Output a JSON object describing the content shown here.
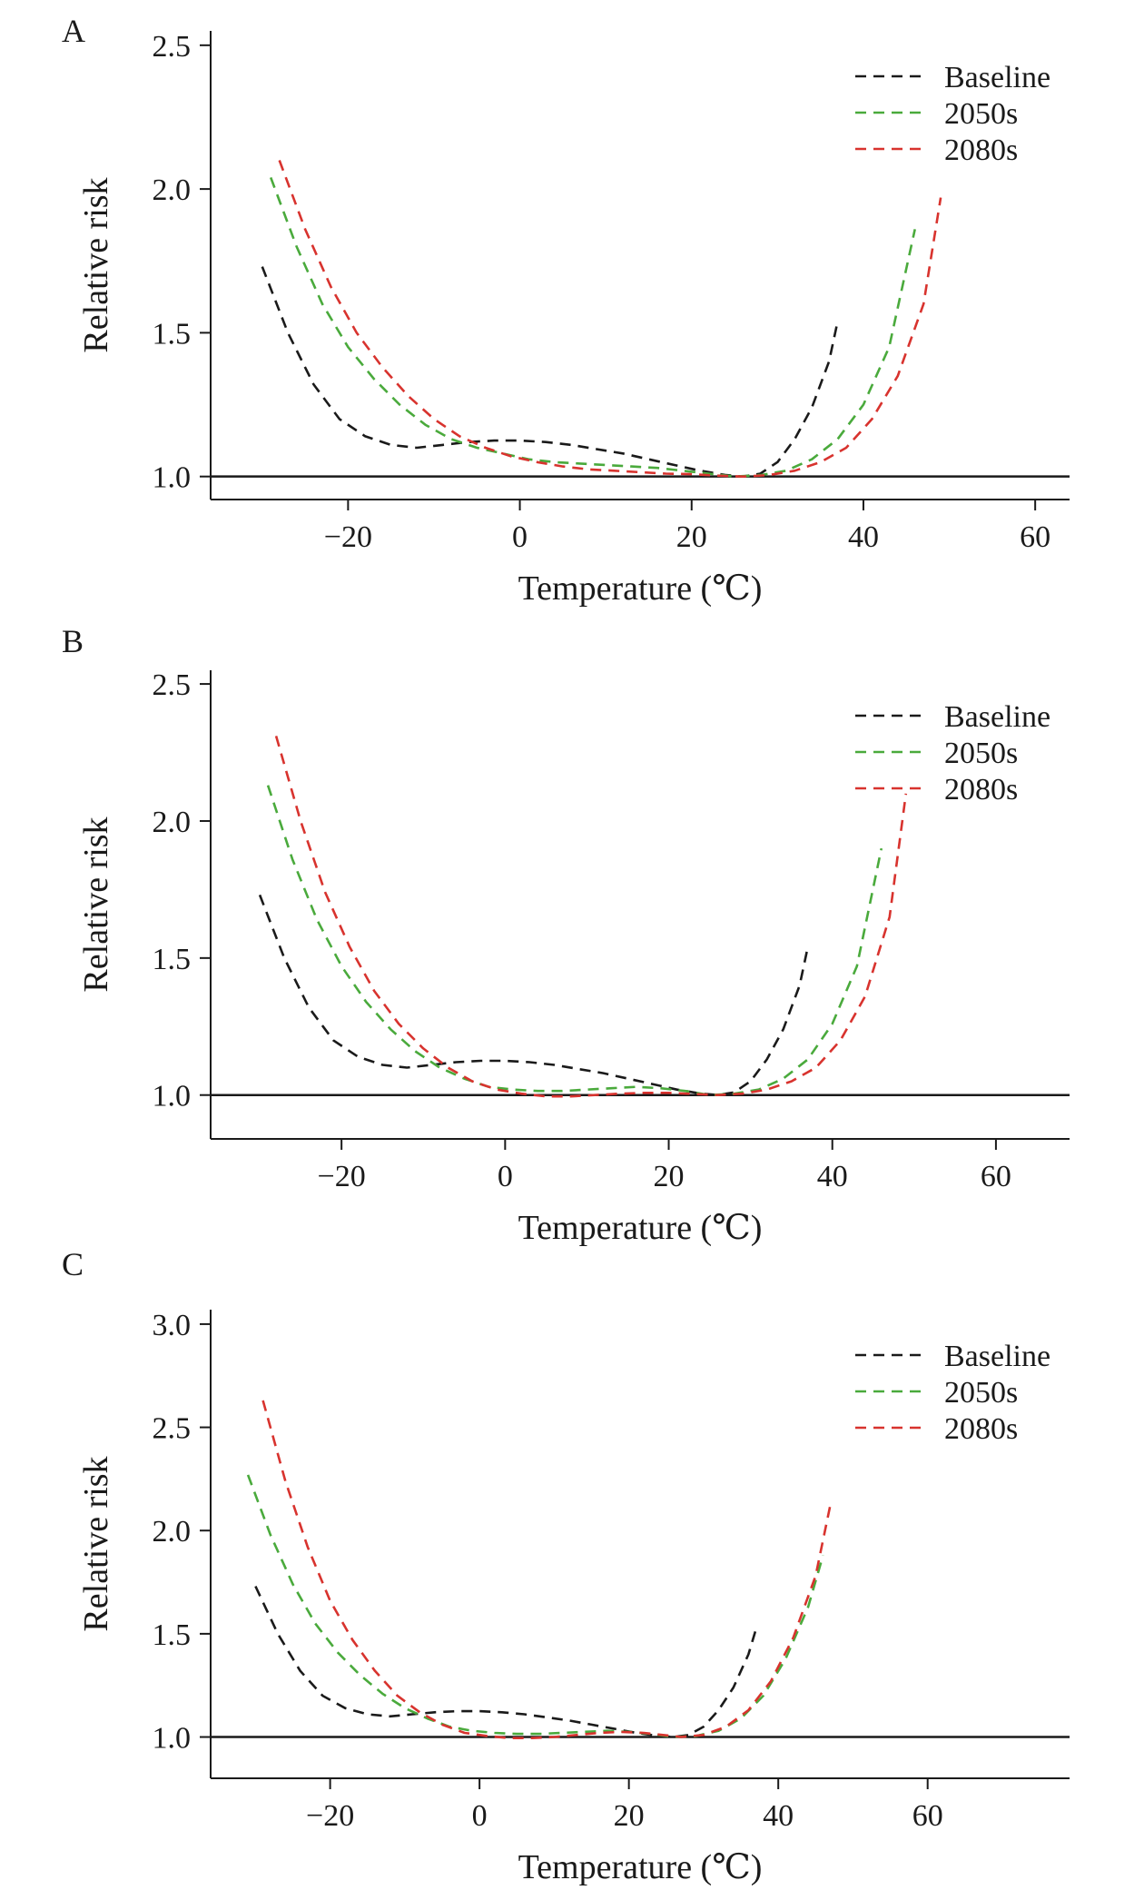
{
  "chart_data": [
    {
      "type": "line",
      "panel": "A",
      "xlabel": "Temperature (℃)",
      "ylabel": "Relative risk",
      "xlim": [
        -36,
        64
      ],
      "ylim": [
        0.92,
        2.55
      ],
      "xticks": [
        -20,
        0,
        20,
        40,
        60
      ],
      "xtick_labels": [
        "−20",
        "0",
        "20",
        "40",
        "60"
      ],
      "yticks": [
        1.0,
        1.5,
        2.0,
        2.5
      ],
      "ytick_labels": [
        "1.0",
        "1.5",
        "2.0",
        "2.5"
      ],
      "reference_line": 1.0,
      "grid": false,
      "legend_position": "top-right",
      "series": [
        {
          "name": "Baseline",
          "color": "#1a1a1a",
          "points": [
            [
              -30,
              1.73
            ],
            [
              -27,
              1.5
            ],
            [
              -24,
              1.32
            ],
            [
              -21,
              1.2
            ],
            [
              -18,
              1.14
            ],
            [
              -15,
              1.11
            ],
            [
              -12,
              1.1
            ],
            [
              -9,
              1.11
            ],
            [
              -6,
              1.12
            ],
            [
              -3,
              1.125
            ],
            [
              0,
              1.125
            ],
            [
              3,
              1.12
            ],
            [
              6,
              1.11
            ],
            [
              9,
              1.095
            ],
            [
              12,
              1.08
            ],
            [
              15,
              1.06
            ],
            [
              18,
              1.04
            ],
            [
              21,
              1.02
            ],
            [
              24,
              1.005
            ],
            [
              26,
              1.0
            ],
            [
              28,
              1.01
            ],
            [
              30,
              1.05
            ],
            [
              32,
              1.13
            ],
            [
              34,
              1.24
            ],
            [
              36,
              1.4
            ],
            [
              37,
              1.54
            ]
          ]
        },
        {
          "name": "2050s",
          "color": "#4aaa3c",
          "points": [
            [
              -29,
              2.04
            ],
            [
              -26,
              1.8
            ],
            [
              -23,
              1.6
            ],
            [
              -20,
              1.45
            ],
            [
              -17,
              1.34
            ],
            [
              -14,
              1.25
            ],
            [
              -11,
              1.18
            ],
            [
              -8,
              1.13
            ],
            [
              -5,
              1.1
            ],
            [
              -2,
              1.08
            ],
            [
              1,
              1.06
            ],
            [
              4,
              1.05
            ],
            [
              7,
              1.045
            ],
            [
              10,
              1.04
            ],
            [
              13,
              1.035
            ],
            [
              16,
              1.03
            ],
            [
              19,
              1.02
            ],
            [
              22,
              1.01
            ],
            [
              25,
              1.0
            ],
            [
              28,
              1.005
            ],
            [
              31,
              1.02
            ],
            [
              34,
              1.06
            ],
            [
              37,
              1.13
            ],
            [
              40,
              1.25
            ],
            [
              43,
              1.45
            ],
            [
              46,
              1.86
            ]
          ]
        },
        {
          "name": "2080s",
          "color": "#d8332e",
          "points": [
            [
              -28,
              2.1
            ],
            [
              -25,
              1.86
            ],
            [
              -22,
              1.66
            ],
            [
              -19,
              1.5
            ],
            [
              -16,
              1.38
            ],
            [
              -13,
              1.28
            ],
            [
              -10,
              1.2
            ],
            [
              -7,
              1.14
            ],
            [
              -4,
              1.1
            ],
            [
              -1,
              1.07
            ],
            [
              2,
              1.05
            ],
            [
              5,
              1.035
            ],
            [
              8,
              1.025
            ],
            [
              11,
              1.02
            ],
            [
              14,
              1.015
            ],
            [
              17,
              1.01
            ],
            [
              20,
              1.008
            ],
            [
              23,
              1.003
            ],
            [
              26,
              1.0
            ],
            [
              29,
              1.005
            ],
            [
              32,
              1.02
            ],
            [
              35,
              1.05
            ],
            [
              38,
              1.1
            ],
            [
              41,
              1.2
            ],
            [
              44,
              1.35
            ],
            [
              47,
              1.6
            ],
            [
              49,
              1.97
            ]
          ]
        }
      ]
    },
    {
      "type": "line",
      "panel": "B",
      "xlabel": "Temperature (℃)",
      "ylabel": "Relative risk",
      "xlim": [
        -36,
        69
      ],
      "ylim": [
        0.84,
        2.55
      ],
      "xticks": [
        -20,
        0,
        20,
        40,
        60
      ],
      "xtick_labels": [
        "−20",
        "0",
        "20",
        "40",
        "60"
      ],
      "yticks": [
        1.0,
        1.5,
        2.0,
        2.5
      ],
      "ytick_labels": [
        "1.0",
        "1.5",
        "2.0",
        "2.5"
      ],
      "reference_line": 1.0,
      "grid": false,
      "legend_position": "top-right",
      "series": [
        {
          "name": "Baseline",
          "color": "#1a1a1a",
          "points": [
            [
              -30,
              1.73
            ],
            [
              -27,
              1.5
            ],
            [
              -24,
              1.32
            ],
            [
              -21,
              1.2
            ],
            [
              -18,
              1.14
            ],
            [
              -15,
              1.11
            ],
            [
              -12,
              1.1
            ],
            [
              -9,
              1.11
            ],
            [
              -6,
              1.12
            ],
            [
              -3,
              1.125
            ],
            [
              0,
              1.125
            ],
            [
              3,
              1.12
            ],
            [
              6,
              1.11
            ],
            [
              9,
              1.095
            ],
            [
              12,
              1.08
            ],
            [
              15,
              1.06
            ],
            [
              18,
              1.04
            ],
            [
              21,
              1.02
            ],
            [
              24,
              1.005
            ],
            [
              26,
              1.0
            ],
            [
              28,
              1.01
            ],
            [
              30,
              1.05
            ],
            [
              32,
              1.13
            ],
            [
              34,
              1.24
            ],
            [
              36,
              1.4
            ],
            [
              37,
              1.54
            ]
          ]
        },
        {
          "name": "2050s",
          "color": "#4aaa3c",
          "points": [
            [
              -29,
              2.13
            ],
            [
              -26,
              1.86
            ],
            [
              -23,
              1.64
            ],
            [
              -20,
              1.47
            ],
            [
              -17,
              1.34
            ],
            [
              -14,
              1.24
            ],
            [
              -11,
              1.16
            ],
            [
              -8,
              1.1
            ],
            [
              -5,
              1.06
            ],
            [
              -2,
              1.03
            ],
            [
              1,
              1.02
            ],
            [
              4,
              1.015
            ],
            [
              7,
              1.015
            ],
            [
              10,
              1.02
            ],
            [
              13,
              1.025
            ],
            [
              16,
              1.03
            ],
            [
              19,
              1.025
            ],
            [
              22,
              1.015
            ],
            [
              25,
              1.0
            ],
            [
              28,
              1.005
            ],
            [
              31,
              1.02
            ],
            [
              34,
              1.06
            ],
            [
              37,
              1.13
            ],
            [
              40,
              1.26
            ],
            [
              43,
              1.47
            ],
            [
              46,
              1.9
            ]
          ]
        },
        {
          "name": "2080s",
          "color": "#d8332e",
          "points": [
            [
              -28,
              2.31
            ],
            [
              -25,
              2.0
            ],
            [
              -22,
              1.74
            ],
            [
              -19,
              1.54
            ],
            [
              -16,
              1.38
            ],
            [
              -13,
              1.26
            ],
            [
              -10,
              1.17
            ],
            [
              -7,
              1.1
            ],
            [
              -4,
              1.05
            ],
            [
              -1,
              1.02
            ],
            [
              2,
              1.005
            ],
            [
              5,
              0.995
            ],
            [
              8,
              0.995
            ],
            [
              11,
              1.0
            ],
            [
              14,
              1.005
            ],
            [
              17,
              1.008
            ],
            [
              20,
              1.008
            ],
            [
              23,
              1.004
            ],
            [
              26,
              1.0
            ],
            [
              29,
              1.005
            ],
            [
              32,
              1.02
            ],
            [
              35,
              1.05
            ],
            [
              38,
              1.1
            ],
            [
              41,
              1.2
            ],
            [
              44,
              1.36
            ],
            [
              47,
              1.65
            ],
            [
              49,
              2.1
            ]
          ]
        }
      ]
    },
    {
      "type": "line",
      "panel": "C",
      "xlabel": "Temperature (℃)",
      "ylabel": "Relative risk",
      "xlim": [
        -36,
        79
      ],
      "ylim": [
        0.8,
        3.07
      ],
      "xticks": [
        -20,
        0,
        20,
        40,
        60
      ],
      "xtick_labels": [
        "−20",
        "0",
        "20",
        "40",
        "60"
      ],
      "yticks": [
        1.0,
        1.5,
        2.0,
        2.5,
        3.0
      ],
      "ytick_labels": [
        "1.0",
        "1.5",
        "2.0",
        "2.5",
        "3.0"
      ],
      "reference_line": 1.0,
      "grid": false,
      "legend_position": "top-right",
      "series": [
        {
          "name": "Baseline",
          "color": "#1a1a1a",
          "points": [
            [
              -30,
              1.73
            ],
            [
              -27,
              1.5
            ],
            [
              -24,
              1.32
            ],
            [
              -21,
              1.2
            ],
            [
              -18,
              1.14
            ],
            [
              -15,
              1.11
            ],
            [
              -12,
              1.1
            ],
            [
              -9,
              1.11
            ],
            [
              -6,
              1.12
            ],
            [
              -3,
              1.125
            ],
            [
              0,
              1.125
            ],
            [
              3,
              1.12
            ],
            [
              6,
              1.11
            ],
            [
              9,
              1.095
            ],
            [
              12,
              1.08
            ],
            [
              15,
              1.06
            ],
            [
              18,
              1.04
            ],
            [
              21,
              1.02
            ],
            [
              24,
              1.005
            ],
            [
              26,
              1.0
            ],
            [
              28,
              1.01
            ],
            [
              30,
              1.05
            ],
            [
              32,
              1.13
            ],
            [
              34,
              1.24
            ],
            [
              36,
              1.4
            ],
            [
              37,
              1.52
            ]
          ]
        },
        {
          "name": "2050s",
          "color": "#4aaa3c",
          "points": [
            [
              -31,
              2.27
            ],
            [
              -28,
              1.98
            ],
            [
              -25,
              1.74
            ],
            [
              -22,
              1.55
            ],
            [
              -19,
              1.41
            ],
            [
              -16,
              1.3
            ],
            [
              -13,
              1.21
            ],
            [
              -10,
              1.14
            ],
            [
              -7,
              1.09
            ],
            [
              -4,
              1.05
            ],
            [
              -1,
              1.03
            ],
            [
              2,
              1.02
            ],
            [
              5,
              1.015
            ],
            [
              8,
              1.015
            ],
            [
              11,
              1.02
            ],
            [
              14,
              1.025
            ],
            [
              17,
              1.03
            ],
            [
              20,
              1.025
            ],
            [
              23,
              1.015
            ],
            [
              26,
              1.0
            ],
            [
              29,
              1.005
            ],
            [
              32,
              1.03
            ],
            [
              35,
              1.09
            ],
            [
              38,
              1.2
            ],
            [
              41,
              1.38
            ],
            [
              44,
              1.63
            ],
            [
              46,
              1.88
            ]
          ]
        },
        {
          "name": "2080s",
          "color": "#d8332e",
          "points": [
            [
              -29,
              2.63
            ],
            [
              -26,
              2.24
            ],
            [
              -23,
              1.92
            ],
            [
              -20,
              1.66
            ],
            [
              -17,
              1.47
            ],
            [
              -14,
              1.32
            ],
            [
              -11,
              1.2
            ],
            [
              -8,
              1.12
            ],
            [
              -5,
              1.06
            ],
            [
              -2,
              1.02
            ],
            [
              1,
              1.005
            ],
            [
              4,
              0.995
            ],
            [
              7,
              0.995
            ],
            [
              10,
              1.0
            ],
            [
              13,
              1.01
            ],
            [
              16,
              1.02
            ],
            [
              19,
              1.025
            ],
            [
              22,
              1.02
            ],
            [
              25,
              1.008
            ],
            [
              27,
              1.0
            ],
            [
              30,
              1.01
            ],
            [
              33,
              1.05
            ],
            [
              36,
              1.13
            ],
            [
              39,
              1.27
            ],
            [
              42,
              1.48
            ],
            [
              45,
              1.78
            ],
            [
              47,
              2.13
            ]
          ]
        }
      ]
    }
  ]
}
